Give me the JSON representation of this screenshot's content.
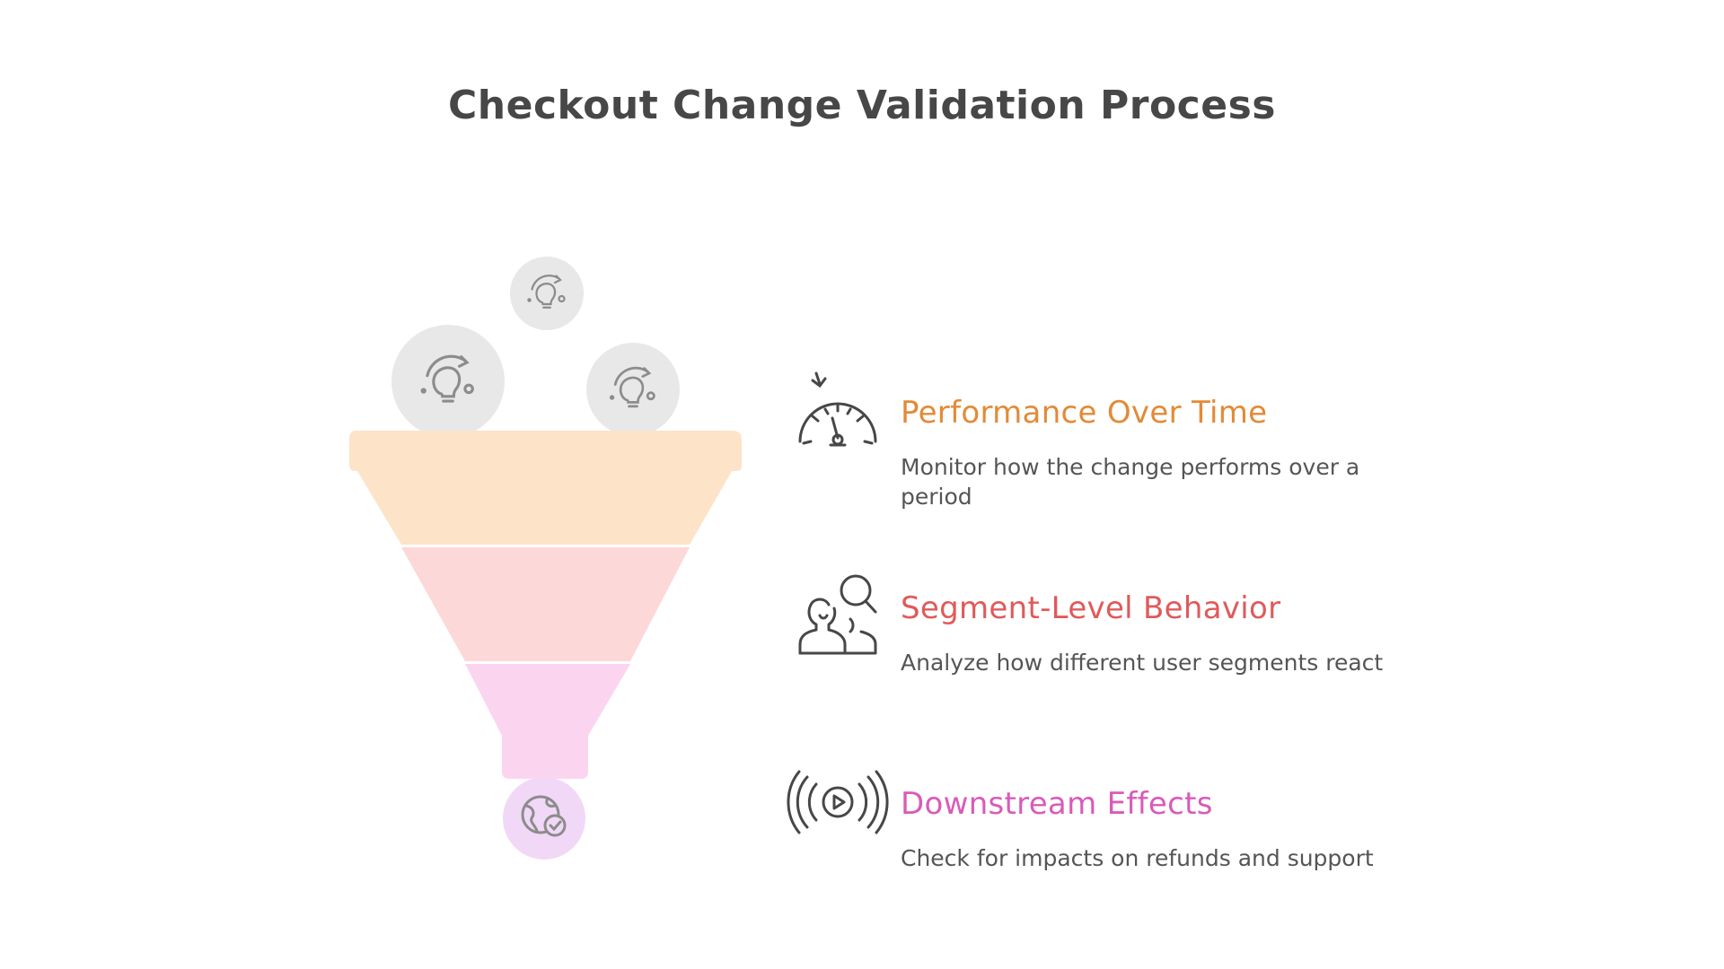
{
  "title": "Checkout Change Validation Process",
  "colors": {
    "title": "#474747",
    "description": "#555555",
    "bubble": "#e8e8e8",
    "icon_gray": "#8c8c8c",
    "icon_dark": "#474747",
    "funnel_top": "#fde3c8",
    "funnel_mid": "#fdd8d8",
    "funnel_bottom": "#fbd5ef",
    "outlet_circle": "#f2d8f7",
    "step1": "#e38a37",
    "step2": "#e05a5a",
    "step3": "#d95bb8"
  },
  "input_bubbles": [
    {
      "icon": "lightbulb-idea-icon"
    },
    {
      "icon": "lightbulb-idea-icon"
    },
    {
      "icon": "lightbulb-idea-icon"
    }
  ],
  "outlet_icon": "globe-check-icon",
  "steps": [
    {
      "icon": "speedometer-icon",
      "title": "Performance Over Time",
      "description": "Monitor how the change performs over a period"
    },
    {
      "icon": "user-search-icon",
      "title": "Segment-Level Behavior",
      "description": "Analyze how different user segments react"
    },
    {
      "icon": "broadcast-play-icon",
      "title": "Downstream Effects",
      "description": "Check for impacts on refunds and support"
    }
  ]
}
